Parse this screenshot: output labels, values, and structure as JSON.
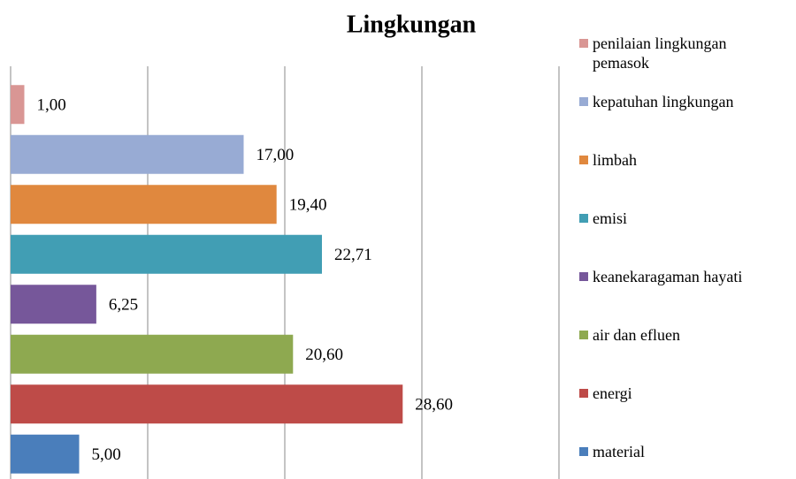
{
  "chart_data": {
    "type": "bar",
    "orientation": "horizontal",
    "title": "Lingkungan",
    "categories": [
      "material",
      "energi",
      "air dan efluen",
      "keanekaragaman hayati",
      "emisi",
      "limbah",
      "kepatuhan lingkungan",
      "penilaian lingkungan pemasok"
    ],
    "values": [
      5,
      28.6,
      20.6,
      6.25,
      22.71,
      19.4,
      17,
      1
    ],
    "value_labels": [
      "5,00",
      "28,60",
      "20,60",
      "6,25",
      "22,71",
      "19,40",
      "17,00",
      "1,00"
    ],
    "colors": [
      "#4a7ebb",
      "#be4b48",
      "#8ea950",
      "#76579a",
      "#419eb4",
      "#e0883e",
      "#98abd4",
      "#d99694"
    ],
    "xlim": [
      0,
      40
    ],
    "xticks": [
      0,
      10,
      20,
      30,
      40
    ],
    "grid": true,
    "legend": "right"
  }
}
